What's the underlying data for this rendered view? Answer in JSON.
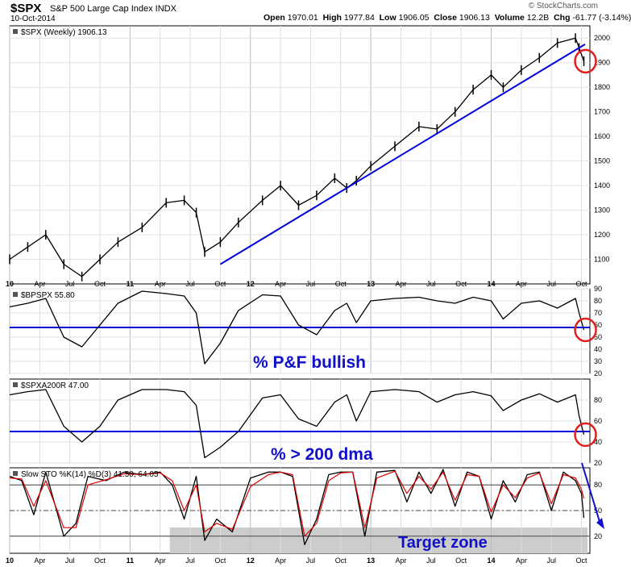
{
  "header": {
    "symbol": "$SPX",
    "name": "S&P 500 Large Cap Index INDX",
    "date": "10-Oct-2014",
    "open_label": "Open",
    "open": "1970.01",
    "high_label": "High",
    "high": "1977.84",
    "low_label": "Low",
    "low": "1906.05",
    "close_label": "Close",
    "close": "1906.13",
    "volume_label": "Volume",
    "volume": "12.2B",
    "chg_label": "Chg",
    "chg": "-61.77 (-3.14%)",
    "watermark": "© StockCharts.com"
  },
  "colors": {
    "trend": "#0000dd",
    "circle": "#e02020",
    "price": "#000000",
    "slowd": "#dd0000",
    "zone": "#cccccc",
    "annot": "#1010cc"
  },
  "x_axis_labels": [
    "10",
    "Apr",
    "Jul",
    "Oct",
    "11",
    "Apr",
    "Jul",
    "Oct",
    "12",
    "Apr",
    "Jul",
    "Oct",
    "13",
    "Apr",
    "Jul",
    "Oct",
    "14",
    "Apr",
    "Jul",
    "Oct"
  ],
  "chart_data": [
    {
      "type": "line",
      "title": "$SPX (Weekly) 1906.13",
      "ylim": [
        1000,
        2050
      ],
      "yticks": [
        "2000",
        "1900",
        "1800",
        "1700",
        "1600",
        "1500",
        "1400",
        "1300",
        "1200",
        "1100"
      ],
      "series": [
        {
          "name": "$SPX",
          "x": [
            2010.0,
            2010.15,
            2010.3,
            2010.45,
            2010.6,
            2010.75,
            2010.9,
            2011.1,
            2011.3,
            2011.45,
            2011.55,
            2011.62,
            2011.75,
            2011.9,
            2012.1,
            2012.25,
            2012.4,
            2012.55,
            2012.7,
            2012.8,
            2012.88,
            2013.0,
            2013.2,
            2013.4,
            2013.55,
            2013.7,
            2013.85,
            2014.0,
            2014.1,
            2014.25,
            2014.4,
            2014.55,
            2014.7,
            2014.73,
            2014.77
          ],
          "values": [
            1100,
            1150,
            1200,
            1080,
            1030,
            1100,
            1170,
            1230,
            1330,
            1340,
            1290,
            1130,
            1170,
            1250,
            1340,
            1400,
            1320,
            1360,
            1430,
            1390,
            1420,
            1480,
            1560,
            1640,
            1630,
            1700,
            1790,
            1850,
            1800,
            1870,
            1920,
            1980,
            2000,
            1960,
            1906
          ]
        }
      ],
      "trendline": {
        "from": [
          2011.75,
          1080
        ],
        "to": [
          2014.78,
          1975
        ]
      }
    },
    {
      "type": "line",
      "title": "$BPSPX 55.80",
      "annotation": "% P&F bullish",
      "ylim": [
        20,
        90
      ],
      "yticks": [
        "90",
        "80",
        "70",
        "60",
        "50",
        "40",
        "30",
        "20"
      ],
      "hline": 58,
      "series": [
        {
          "name": "$BPSPX",
          "x": [
            2010.0,
            2010.15,
            2010.3,
            2010.45,
            2010.6,
            2010.75,
            2010.9,
            2011.1,
            2011.3,
            2011.45,
            2011.55,
            2011.62,
            2011.75,
            2011.9,
            2012.1,
            2012.25,
            2012.4,
            2012.55,
            2012.7,
            2012.8,
            2012.88,
            2013.0,
            2013.2,
            2013.4,
            2013.55,
            2013.7,
            2013.85,
            2014.0,
            2014.1,
            2014.25,
            2014.4,
            2014.55,
            2014.7,
            2014.73,
            2014.77
          ],
          "values": [
            75,
            78,
            82,
            50,
            42,
            60,
            78,
            88,
            86,
            84,
            70,
            28,
            45,
            72,
            85,
            84,
            60,
            52,
            72,
            78,
            62,
            80,
            82,
            83,
            80,
            78,
            83,
            80,
            65,
            78,
            80,
            74,
            82,
            70,
            56
          ]
        }
      ]
    },
    {
      "type": "line",
      "title": "$SPXA200R 47.00",
      "annotation": "% > 200 dma",
      "ylim": [
        20,
        100
      ],
      "yticks": [
        "80",
        "60",
        "40",
        "20"
      ],
      "hline": 50,
      "series": [
        {
          "name": "$SPXA200R",
          "x": [
            2010.0,
            2010.15,
            2010.3,
            2010.45,
            2010.6,
            2010.75,
            2010.9,
            2011.1,
            2011.3,
            2011.45,
            2011.55,
            2011.62,
            2011.75,
            2011.9,
            2012.1,
            2012.25,
            2012.4,
            2012.55,
            2012.7,
            2012.8,
            2012.88,
            2013.0,
            2013.2,
            2013.4,
            2013.55,
            2013.7,
            2013.85,
            2014.0,
            2014.1,
            2014.25,
            2014.4,
            2014.55,
            2014.7,
            2014.73,
            2014.77
          ],
          "values": [
            85,
            88,
            90,
            55,
            40,
            55,
            80,
            90,
            90,
            88,
            75,
            25,
            35,
            50,
            82,
            85,
            62,
            55,
            78,
            85,
            60,
            88,
            90,
            88,
            78,
            85,
            88,
            84,
            70,
            80,
            86,
            78,
            85,
            65,
            47
          ]
        }
      ]
    },
    {
      "type": "line",
      "title": "Slow STO %K(14) %D(3) 41.50, 64.05",
      "annotation": "Target zone",
      "ylim": [
        0,
        100
      ],
      "yticks": [
        "80",
        "50",
        "20"
      ],
      "hlines": [
        80,
        50,
        20
      ],
      "series": [
        {
          "name": "%K(14)",
          "x": [
            2010.0,
            2010.1,
            2010.2,
            2010.3,
            2010.45,
            2010.55,
            2010.65,
            2010.8,
            2010.95,
            2011.1,
            2011.25,
            2011.35,
            2011.45,
            2011.55,
            2011.62,
            2011.72,
            2011.85,
            2012.0,
            2012.15,
            2012.25,
            2012.35,
            2012.45,
            2012.55,
            2012.65,
            2012.75,
            2012.85,
            2012.95,
            2013.05,
            2013.2,
            2013.3,
            2013.4,
            2013.5,
            2013.6,
            2013.7,
            2013.8,
            2013.9,
            2014.0,
            2014.1,
            2014.2,
            2014.3,
            2014.4,
            2014.5,
            2014.6,
            2014.7,
            2014.75,
            2014.77
          ],
          "values": [
            90,
            85,
            45,
            95,
            20,
            35,
            90,
            85,
            95,
            92,
            95,
            80,
            40,
            90,
            15,
            40,
            25,
            88,
            95,
            95,
            90,
            10,
            40,
            92,
            95,
            95,
            20,
            95,
            97,
            60,
            95,
            70,
            98,
            55,
            95,
            90,
            40,
            85,
            60,
            92,
            95,
            50,
            95,
            85,
            70,
            41.5
          ]
        },
        {
          "name": "%D(3)",
          "x": [
            2010.0,
            2010.1,
            2010.2,
            2010.3,
            2010.45,
            2010.55,
            2010.65,
            2010.8,
            2010.95,
            2011.1,
            2011.25,
            2011.35,
            2011.45,
            2011.55,
            2011.62,
            2011.72,
            2011.85,
            2012.0,
            2012.15,
            2012.25,
            2012.35,
            2012.45,
            2012.55,
            2012.65,
            2012.75,
            2012.85,
            2012.95,
            2013.05,
            2013.2,
            2013.3,
            2013.4,
            2013.5,
            2013.6,
            2013.7,
            2013.8,
            2013.9,
            2014.0,
            2014.1,
            2014.2,
            2014.3,
            2014.4,
            2014.5,
            2014.6,
            2014.7,
            2014.75,
            2014.77
          ],
          "values": [
            88,
            87,
            55,
            85,
            30,
            30,
            80,
            86,
            93,
            92,
            94,
            85,
            50,
            80,
            25,
            35,
            28,
            78,
            92,
            95,
            92,
            20,
            35,
            85,
            94,
            95,
            30,
            88,
            96,
            70,
            90,
            75,
            95,
            62,
            92,
            90,
            48,
            80,
            65,
            88,
            94,
            58,
            92,
            88,
            75,
            64.05
          ]
        }
      ]
    }
  ]
}
